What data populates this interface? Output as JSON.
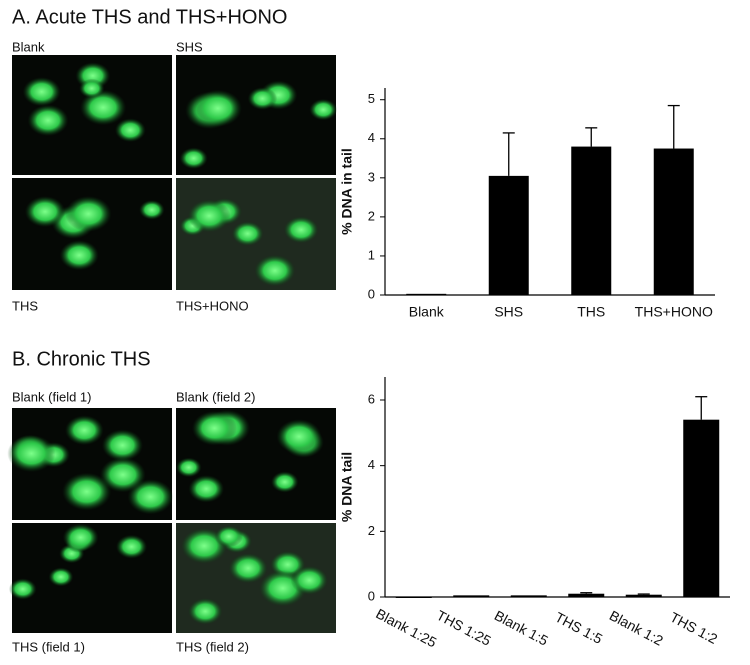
{
  "image_panels": [
    [
      "Blank",
      "SHS",
      "THS",
      "THS+HONO"
    ],
    [
      "Blank (field 1)",
      "Blank (field 2)",
      "THS (field 1)",
      "THS (field 2)"
    ]
  ],
  "chart_data": [
    {
      "type": "bar",
      "title": "A. Acute THS and THS+HONO",
      "y_label": "% DNA in tail",
      "categories": [
        "Blank",
        "SHS",
        "THS",
        "THS+HONO"
      ],
      "values": [
        0.03,
        3.05,
        3.8,
        3.75
      ],
      "errors": [
        0,
        1.1,
        0.48,
        1.1
      ],
      "color": "#000000",
      "ylim": [
        0,
        5.3
      ],
      "yticks": [
        0,
        1,
        2,
        3,
        4,
        5
      ],
      "grid": false
    },
    {
      "type": "bar",
      "title": "B. Chronic THS",
      "y_label": "% DNA tail",
      "categories": [
        "Blank 1:25",
        "THS 1:25",
        "Blank 1:5",
        "THS 1:5",
        "Blank 1:2",
        "THS 1:2"
      ],
      "values": [
        0,
        0.05,
        0.05,
        0.1,
        0.07,
        5.4
      ],
      "errors": [
        0,
        0,
        0,
        0.03,
        0.02,
        0.7
      ],
      "color": "#000000",
      "ylim": [
        0,
        6.7
      ],
      "yticks": [
        0,
        2,
        4,
        6
      ],
      "grid": false
    }
  ]
}
